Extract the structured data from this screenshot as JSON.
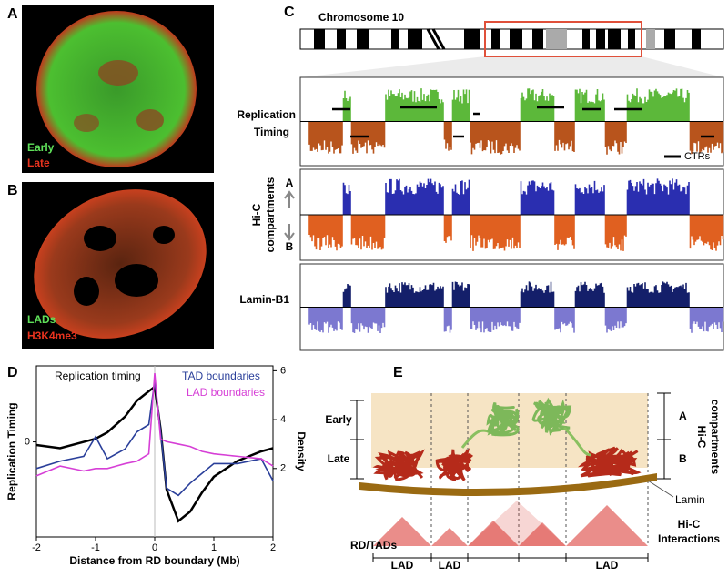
{
  "panels": {
    "a": {
      "letter": "A",
      "labels": [
        "Early",
        "Late"
      ]
    },
    "b": {
      "letter": "B",
      "labels": [
        "LADs",
        "H3K4me3"
      ]
    },
    "c": {
      "letter": "C",
      "chromosome": "Chromosome 10",
      "tracks": [
        {
          "label": [
            "Replication",
            "Timing"
          ],
          "legend": "CTRs"
        },
        {
          "label": [
            "Hi-C",
            "compartments"
          ],
          "top": "A",
          "bottom": "B"
        },
        {
          "label": [
            "Lamin-B1"
          ]
        }
      ]
    },
    "d": {
      "letter": "D"
    },
    "e": {
      "letter": "E",
      "early": "Early",
      "late": "Late",
      "top": "A",
      "bottom": "B",
      "compartments": [
        "Hi-C",
        "compartments"
      ],
      "lamin": "Lamin",
      "rd": "RD/TADs",
      "interactions": [
        "Hi-C",
        "Interactions"
      ],
      "lads": [
        "LAD",
        "LAD",
        "LAD"
      ]
    }
  },
  "chart_data": {
    "type": "line",
    "x_label": "Distance from RD boundary (Mb)",
    "y_label": "Replication Timing",
    "y2_label": "Density",
    "x": [
      -2,
      -1.6,
      -1.2,
      -1,
      -0.8,
      -0.5,
      -0.3,
      -0.1,
      0,
      0.1,
      0.2,
      0.4,
      0.6,
      0.8,
      1,
      1.4,
      1.8,
      2
    ],
    "xlim": [
      -2,
      2
    ],
    "xticks": [
      -2,
      -1,
      0,
      1,
      2
    ],
    "ylim": [
      -1.5,
      1.2
    ],
    "yticks": [
      0
    ],
    "y2lim": [
      -0.8,
      6.2
    ],
    "y2ticks": [
      2,
      4,
      6
    ],
    "series": [
      {
        "name": "Replication timing",
        "color": "#000000",
        "values": [
          -0.05,
          -0.1,
          0,
          0.05,
          0.15,
          0.4,
          0.65,
          0.8,
          0.87,
          0.2,
          -0.75,
          -1.25,
          -1.1,
          -0.8,
          -0.55,
          -0.3,
          -0.15,
          -0.1
        ]
      },
      {
        "name": "TAD boundaries",
        "color": "#2a3f9a",
        "axis": "y2",
        "values": [
          2,
          2.3,
          2.5,
          3.3,
          2.4,
          2.8,
          3.5,
          3.8,
          5.6,
          3.5,
          1.2,
          0.9,
          1.4,
          1.8,
          2.2,
          2.2,
          2.4,
          1.5
        ]
      },
      {
        "name": "LAD boundaries",
        "color": "#d63fd6",
        "axis": "y2",
        "values": [
          1.7,
          2.1,
          1.9,
          2,
          2,
          2.2,
          2.3,
          2.6,
          5.9,
          3.2,
          3.1,
          3,
          2.9,
          2.7,
          2.6,
          2.5,
          2.4,
          2.1
        ]
      }
    ]
  }
}
